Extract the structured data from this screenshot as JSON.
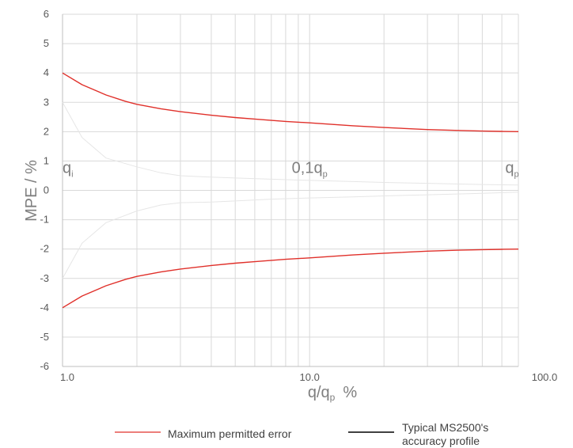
{
  "chart_data": {
    "type": "line",
    "xlabel": "q/qₚ  %",
    "xlabel_main": "q/q",
    "xlabel_sub": "p",
    "xlabel_unit": "%",
    "ylabel": "MPE / %",
    "xscale": "log",
    "xlim": [
      1.0,
      70.0
    ],
    "ylim": [
      -6,
      6
    ],
    "y_ticks": [
      6,
      5,
      4,
      3,
      2,
      1,
      0,
      -1,
      -2,
      -3,
      -4,
      -5,
      -6
    ],
    "x_tick_labels": [
      "1.0",
      "10.0",
      "100.0"
    ],
    "x_tick_values": [
      1,
      10,
      100
    ],
    "grid": true,
    "region_labels": [
      {
        "main": "q",
        "sub": "i",
        "x": 1.0
      },
      {
        "main": "0,1q",
        "sub": "p",
        "x": 10.0
      },
      {
        "main": "q",
        "sub": "p",
        "x": 70.0
      }
    ],
    "series": [
      {
        "name": "Maximum permitted error",
        "color": "#e0302a",
        "x": [
          1.0,
          1.2,
          1.5,
          1.8,
          2.0,
          2.5,
          3.0,
          4.0,
          5.0,
          6.0,
          8.0,
          10.0,
          15.0,
          20.0,
          30.0,
          40.0,
          50.0,
          60.0,
          70.0
        ],
        "upper": [
          4.0,
          3.6,
          3.25,
          3.03,
          2.93,
          2.78,
          2.68,
          2.56,
          2.48,
          2.43,
          2.35,
          2.3,
          2.2,
          2.14,
          2.07,
          2.04,
          2.02,
          2.01,
          2.0
        ],
        "lower": [
          -4.0,
          -3.6,
          -3.25,
          -3.03,
          -2.93,
          -2.78,
          -2.68,
          -2.56,
          -2.48,
          -2.43,
          -2.35,
          -2.3,
          -2.2,
          -2.14,
          -2.07,
          -2.04,
          -2.02,
          -2.01,
          -2.0
        ]
      },
      {
        "name": "Typical MS2500's accuracy profile",
        "color": "#e6e6e6",
        "x": [
          1.0,
          1.2,
          1.5,
          2.0,
          2.5,
          3.0,
          4.0,
          5.0,
          7.0,
          10.0,
          15.0,
          20.0,
          30.0,
          50.0,
          70.0
        ],
        "upper": [
          3.0,
          1.8,
          1.1,
          0.8,
          0.6,
          0.5,
          0.45,
          0.42,
          0.38,
          0.34,
          0.3,
          0.27,
          0.24,
          0.2,
          0.18
        ],
        "lower": [
          -3.0,
          -1.8,
          -1.1,
          -0.7,
          -0.5,
          -0.42,
          -0.4,
          -0.36,
          -0.3,
          -0.26,
          -0.22,
          -0.19,
          -0.15,
          -0.1,
          -0.06
        ]
      }
    ]
  },
  "legend": [
    {
      "label": "Maximum permitted error",
      "color": "#e0302a"
    },
    {
      "label_line1": "Typical MS2500's",
      "label_line2": "accuracy profile",
      "color": "#000000"
    }
  ]
}
